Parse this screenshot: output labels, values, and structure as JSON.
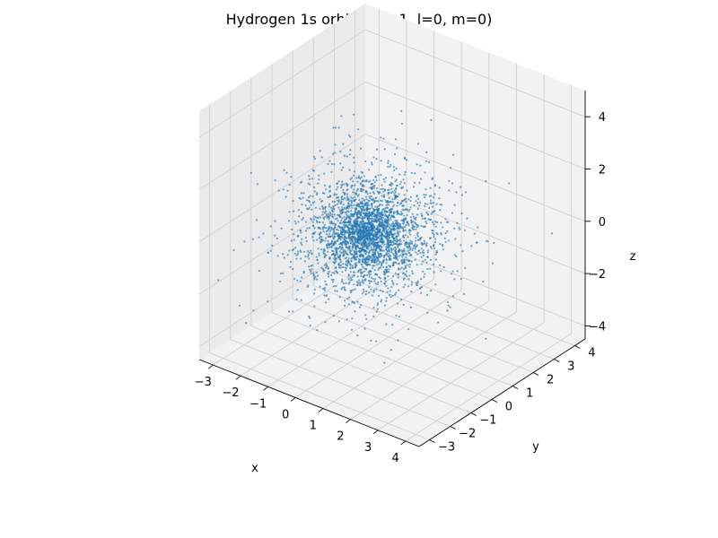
{
  "chart_data": {
    "type": "scatter",
    "title": "Hydrogen 1s orbital (n=1, l=0, m=0)",
    "xlabel": "x",
    "ylabel": "y",
    "zlabel": "z",
    "xlim": [
      -3.5,
      4.5
    ],
    "ylim": [
      -3.5,
      4.5
    ],
    "zlim": [
      -4.5,
      5.0
    ],
    "xticks": [
      "−3",
      "−2",
      "−1",
      "0",
      "1",
      "2",
      "3",
      "4"
    ],
    "yticks": [
      "−3",
      "−2",
      "−1",
      "0",
      "1",
      "2",
      "3",
      "4"
    ],
    "zticks": [
      "−4",
      "−2",
      "0",
      "2",
      "4"
    ],
    "grid": true,
    "point_color": "#1f77b4",
    "point_count": 3000,
    "distribution": "exp(-2r) radial density, centered at origin (Bohr radii)"
  }
}
